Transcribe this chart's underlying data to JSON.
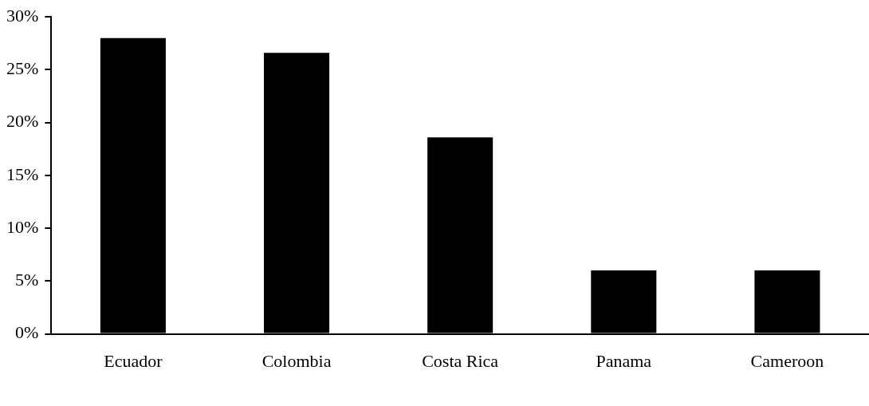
{
  "chart_data": {
    "type": "bar",
    "categories": [
      "Ecuador",
      "Colombia",
      "Costa Rica",
      "Panama",
      "Cameroon"
    ],
    "values": [
      28.0,
      26.6,
      18.6,
      6.0,
      6.0
    ],
    "color": "#000000",
    "ylim": [
      0,
      30
    ],
    "yticks": [
      {
        "value": 0,
        "label": "0%"
      },
      {
        "value": 5,
        "label": "5%"
      },
      {
        "value": 10,
        "label": "10%"
      },
      {
        "value": 15,
        "label": "15%"
      },
      {
        "value": 20,
        "label": "20%"
      },
      {
        "value": 25,
        "label": "25%"
      },
      {
        "value": 30,
        "label": "30%"
      }
    ],
    "grid": false,
    "legend": false
  }
}
